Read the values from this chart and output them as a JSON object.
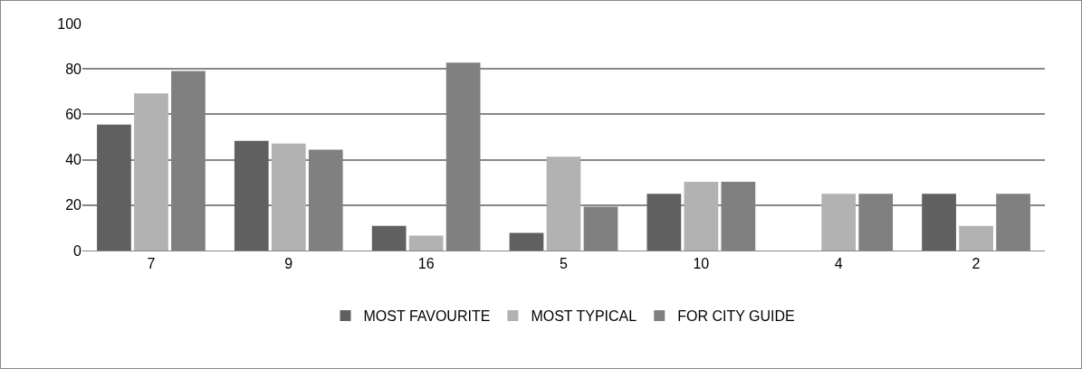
{
  "chart_data": {
    "type": "bar",
    "categories": [
      "7",
      "9",
      "16",
      "5",
      "10",
      "4",
      "2"
    ],
    "series": [
      {
        "name": "MOST FAVOURITE",
        "color": "#606060",
        "values": [
          55.5,
          48.3,
          10.9,
          7.8,
          25,
          0,
          25
        ]
      },
      {
        "name": "MOST TYPICAL",
        "color": "#b2b2b2",
        "values": [
          69.2,
          47.1,
          6.6,
          41.3,
          30.3,
          25,
          10.9
        ]
      },
      {
        "name": "FOR CITY GUIDE",
        "color": "#808080",
        "values": [
          79.1,
          44.4,
          82.8,
          19.3,
          30.3,
          25,
          25
        ]
      }
    ],
    "ylim": [
      0,
      100
    ],
    "yticks": [
      0,
      20,
      40,
      60,
      80,
      100
    ],
    "grid": "y",
    "legend": "bottom"
  }
}
